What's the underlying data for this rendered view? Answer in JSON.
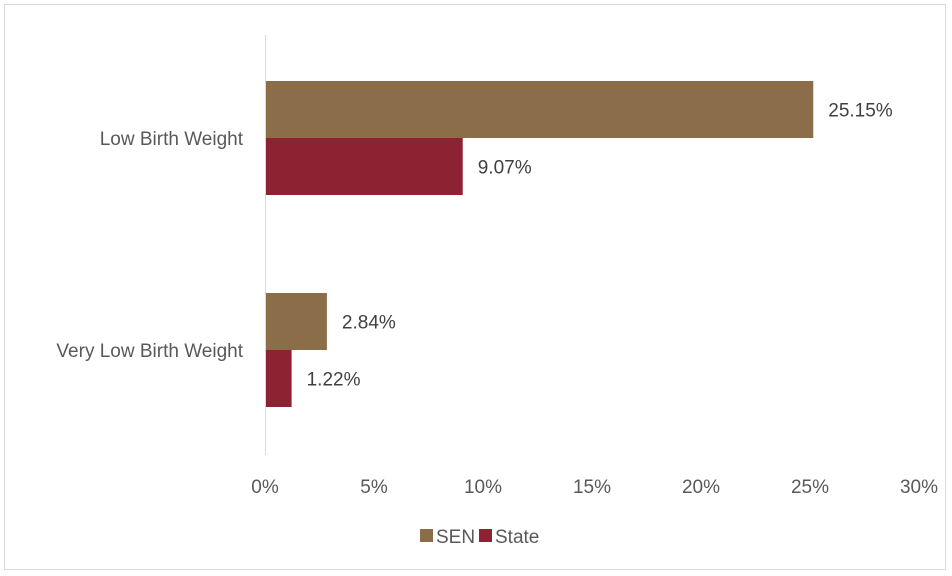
{
  "chart_data": {
    "type": "bar",
    "orientation": "horizontal",
    "title": "",
    "xlabel": "",
    "ylabel": "",
    "categories": [
      "Low Birth Weight",
      "Very Low Birth Weight"
    ],
    "series": [
      {
        "name": "SEN",
        "values": [
          25.15,
          2.84
        ],
        "labels": [
          "25.15%",
          "2.84%"
        ],
        "color": "#8B6D4A"
      },
      {
        "name": "State",
        "values": [
          9.07,
          1.22
        ],
        "labels": [
          "9.07%",
          "1.22%"
        ],
        "color": "#8C2232"
      }
    ],
    "xlim": [
      0,
      30
    ],
    "ticks": [
      0,
      5,
      10,
      15,
      20,
      25,
      30
    ],
    "tick_labels": [
      "0%",
      "5%",
      "10%",
      "15%",
      "20%",
      "25%",
      "30%"
    ],
    "grid": false,
    "legend_position": "bottom"
  }
}
